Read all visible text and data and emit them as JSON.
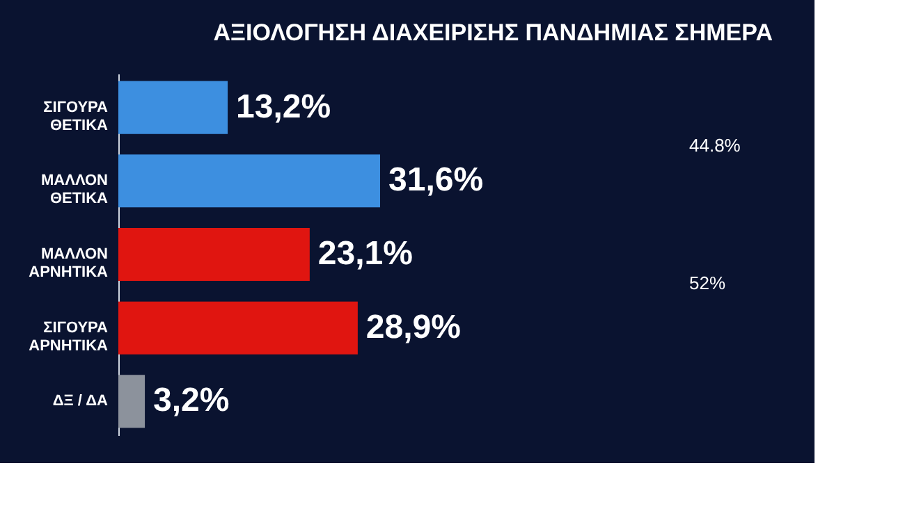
{
  "chart_data": {
    "type": "bar",
    "orientation": "horizontal",
    "title": "ΑΞΙΟΛΟΓΗΣΗ ΔΙΑΧΕΙΡΙΣΗΣ ΠΑΝΔΗΜΙΑΣ ΣΗΜΕΡΑ",
    "categories": [
      "ΣΙΓΟΥΡΑ\nΘΕΤΙΚΑ",
      "ΜΑΛΛΟΝ\nΘΕΤΙΚΑ",
      "ΜΑΛΛΟΝ\nΑΡΝΗΤΙΚΑ",
      "ΣΙΓΟΥΡΑ\nΑΡΝΗΤΙΚΑ",
      "ΔΞ / ΔΑ"
    ],
    "values": [
      13.2,
      31.6,
      23.1,
      28.9,
      3.2
    ],
    "value_labels": [
      "13,2%",
      "31,6%",
      "23,1%",
      "28,9%",
      "3,2%"
    ],
    "colors": [
      "#3d8fe0",
      "#3d8fe0",
      "#e01510",
      "#e01510",
      "#8c929c"
    ],
    "annotations": [
      "44.8%",
      "52%"
    ],
    "grid": false
  }
}
